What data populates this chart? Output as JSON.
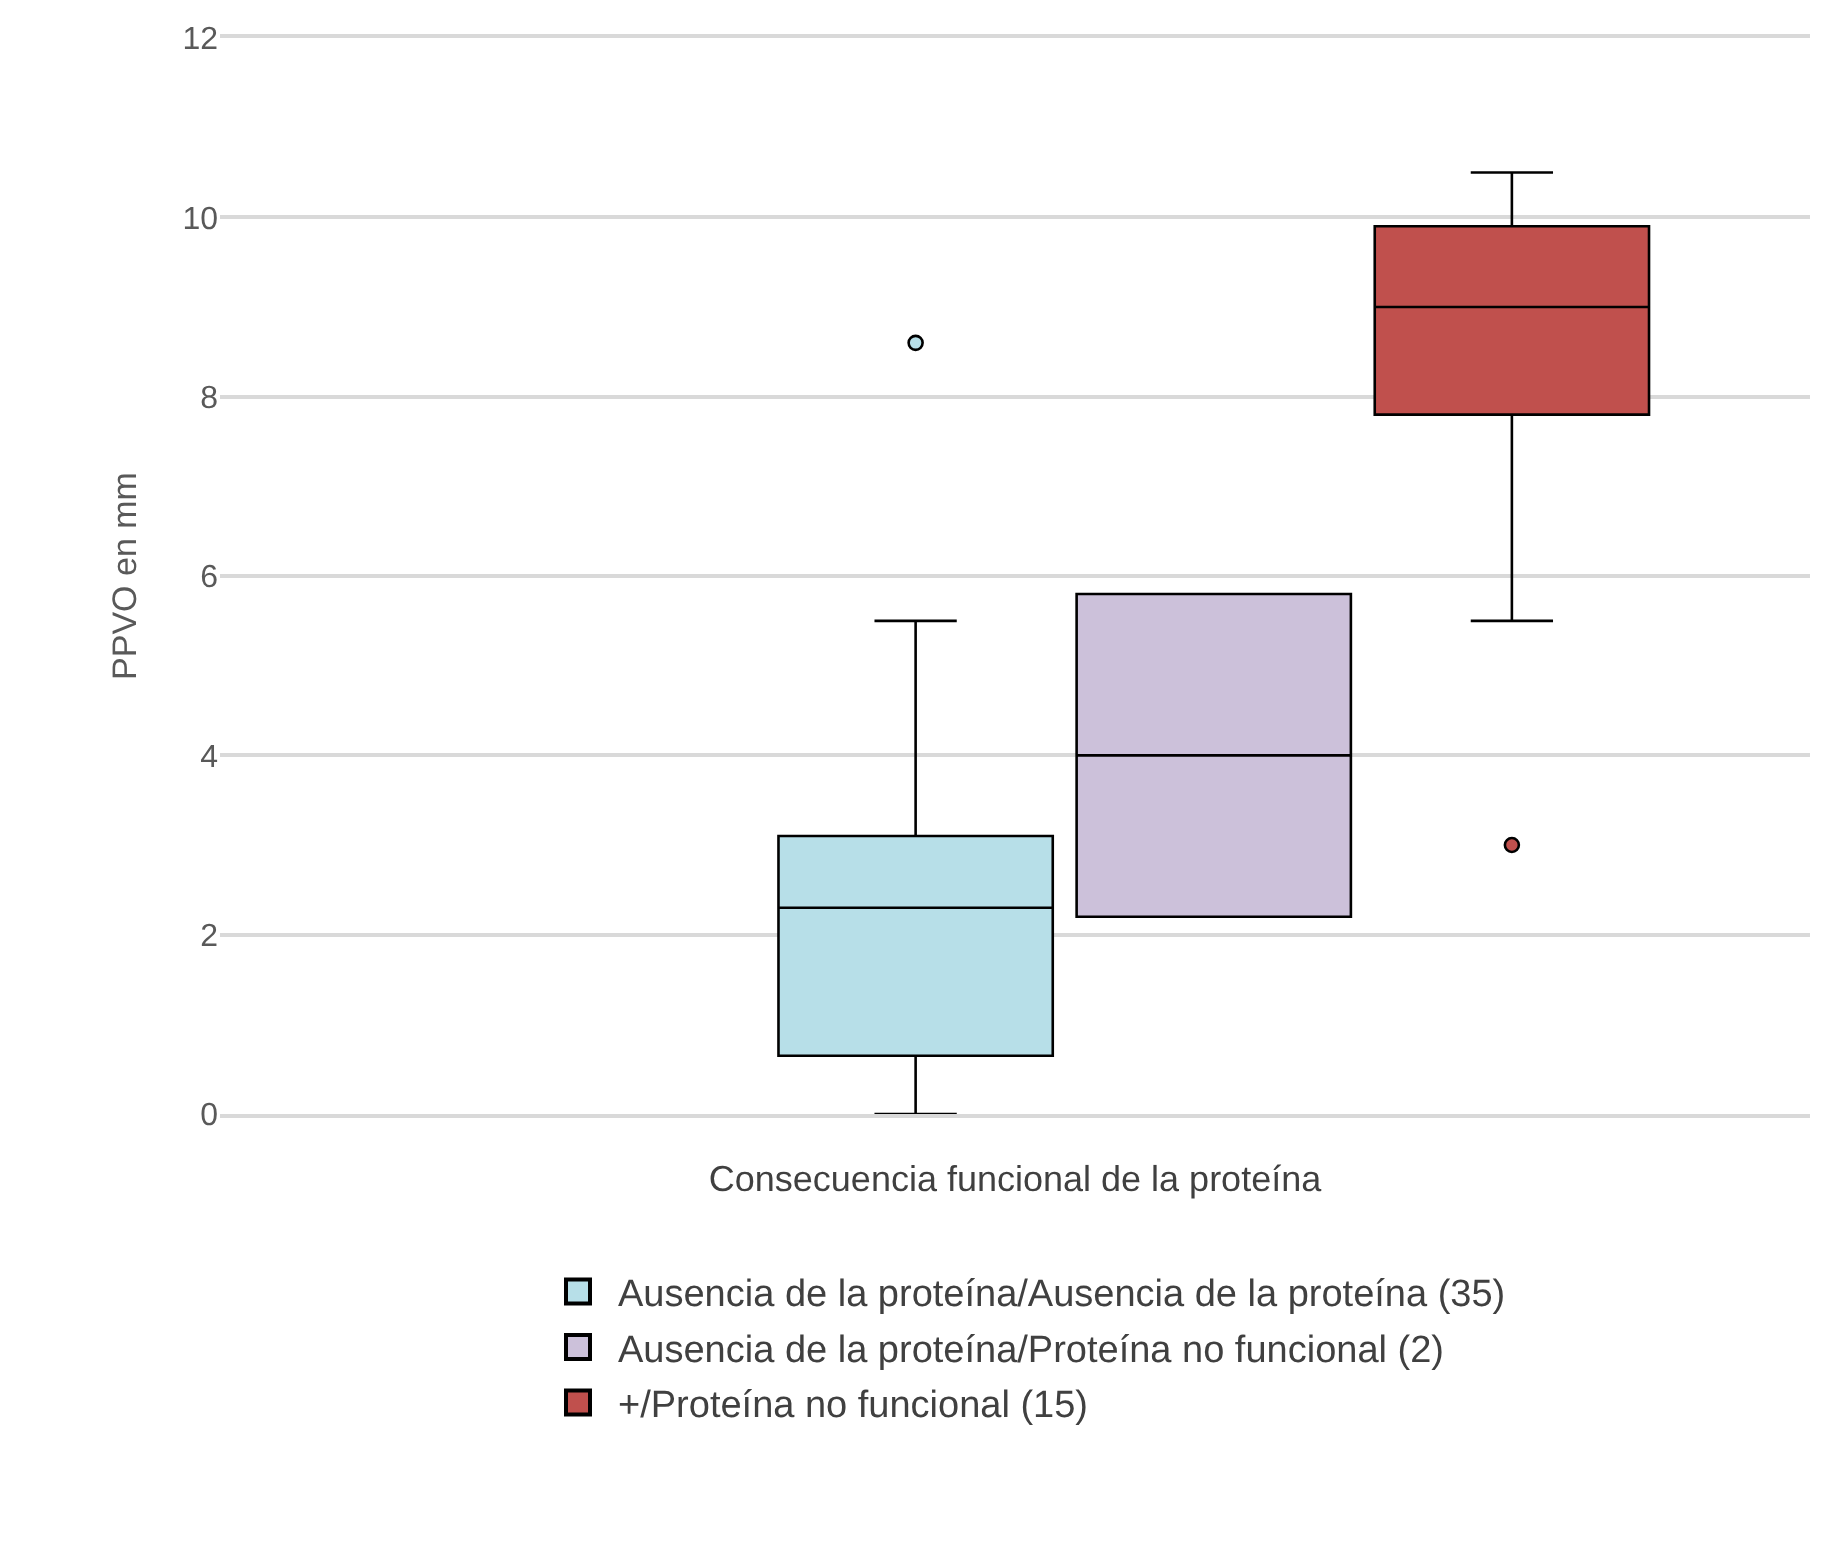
{
  "chart_data": {
    "type": "box",
    "xlabel": "Consecuencia funcional de la proteína",
    "ylabel": "PPVO en mm",
    "categories": [
      null
    ],
    "ylim": [
      0,
      12
    ],
    "yticks": [
      0,
      2,
      4,
      6,
      8,
      10,
      12
    ],
    "grid": "y",
    "legend": "bottom",
    "series": [
      {
        "name": "Ausencia de la proteína/Ausencia de la proteína (35)",
        "color": "#b7dfe8",
        "boxes": [
          {
            "low": 0,
            "q1": 0.65,
            "median": 2.3,
            "q3": 3.1,
            "high": 5.5,
            "outliers": [
              8.6
            ]
          }
        ]
      },
      {
        "name": "Ausencia de la proteína/Proteína no funcional (2)",
        "color": "#ccc1da",
        "boxes": [
          {
            "low": 2.2,
            "q1": 2.2,
            "median": 4.0,
            "q3": 5.8,
            "high": 5.8
          }
        ]
      },
      {
        "name": "+/Proteína no funcional (15)",
        "color": "#c0504d",
        "boxes": [
          {
            "low": 5.5,
            "q1": 7.8,
            "median": 9.0,
            "q3": 9.9,
            "high": 10.5,
            "outliers": [
              3.0
            ]
          }
        ]
      }
    ]
  }
}
